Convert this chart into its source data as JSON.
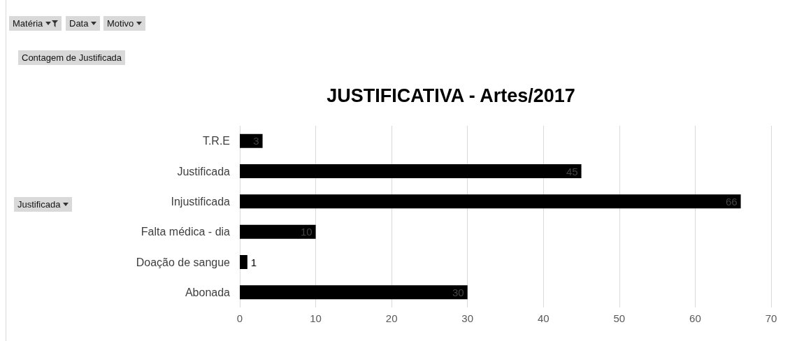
{
  "chart_data": {
    "type": "bar",
    "orientation": "horizontal",
    "title": "JUSTIFICATIVA - Artes/2017",
    "categories": [
      "T.R.E",
      "Justificada",
      "Injustificada",
      "Falta médica - dia",
      "Doação de sangue",
      "Abonada"
    ],
    "values": [
      3,
      45,
      66,
      10,
      1,
      30
    ],
    "color": "#000000",
    "xlim": [
      0,
      70
    ],
    "xticks": [
      0,
      10,
      20,
      30,
      40,
      50,
      60,
      70
    ],
    "grid": "x",
    "data_labels": true,
    "annotations": [
      "Matéria",
      "Data",
      "Motivo",
      "Contagem de Justificada",
      "Justificada"
    ]
  }
}
